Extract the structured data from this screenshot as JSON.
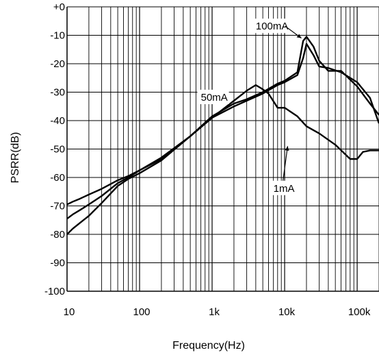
{
  "chart_data": {
    "type": "line",
    "title": "",
    "xlabel": "Frequency(Hz)",
    "ylabel": "PSRR(dB)",
    "x_scale": "log",
    "xlim": [
      10,
      200000
    ],
    "ylim": [
      -100,
      0
    ],
    "x_tick_values": [
      10,
      100,
      1000,
      10000,
      100000
    ],
    "x_tick_labels": [
      "10",
      "100",
      "1k",
      "10k",
      "100k"
    ],
    "y_tick_values": [
      0,
      -10,
      -20,
      -30,
      -40,
      -50,
      -60,
      -70,
      -80,
      -90,
      -100
    ],
    "y_tick_labels": [
      "+0",
      "-10",
      "-20",
      "-30",
      "-40",
      "-50",
      "-60",
      "-70",
      "-80",
      "-90",
      "-100"
    ],
    "grid": true,
    "series": [
      {
        "name": "1mA",
        "color": "#000000",
        "x": [
          10,
          12,
          15,
          20,
          30,
          50,
          70,
          100,
          200,
          500,
          1000,
          2000,
          3000,
          4000,
          5000,
          6000,
          8000,
          10000,
          15000,
          20000,
          30000,
          50000,
          80000,
          100000,
          120000,
          150000,
          200000
        ],
        "y": [
          -69.5,
          -68.5,
          -67.5,
          -66,
          -64,
          -61,
          -59.5,
          -57.5,
          -53.5,
          -45.5,
          -39,
          -33,
          -29.5,
          -27.5,
          -29,
          -30.5,
          -35.5,
          -35.5,
          -38.5,
          -42,
          -44.5,
          -48.5,
          -53.5,
          -53.5,
          -51,
          -50.5,
          -50.5
        ]
      },
      {
        "name": "50mA",
        "color": "#000000",
        "x": [
          10,
          12,
          15,
          20,
          30,
          50,
          70,
          100,
          200,
          500,
          1000,
          2000,
          3000,
          5000,
          8000,
          10000,
          15000,
          18000,
          20000,
          25000,
          30000,
          40000,
          60000,
          100000,
          150000,
          200000
        ],
        "y": [
          -74.5,
          -73,
          -71.5,
          -69.5,
          -66.5,
          -62,
          -60,
          -57.5,
          -53,
          -45.5,
          -39,
          -35,
          -33,
          -30.5,
          -27.5,
          -26.5,
          -24,
          -18,
          -13,
          -17,
          -21,
          -21.5,
          -23,
          -26.5,
          -32,
          -41
        ]
      },
      {
        "name": "100mA",
        "color": "#000000",
        "x": [
          10,
          12,
          15,
          20,
          30,
          50,
          70,
          100,
          200,
          500,
          1000,
          2000,
          3000,
          5000,
          8000,
          10000,
          15000,
          18000,
          20000,
          25000,
          30000,
          40000,
          60000,
          100000,
          150000,
          200000
        ],
        "y": [
          -80,
          -78,
          -76,
          -73.5,
          -69,
          -63,
          -60.5,
          -58.5,
          -54,
          -45.5,
          -38.5,
          -34,
          -32.5,
          -30,
          -27,
          -26,
          -23,
          -12,
          -10.5,
          -14,
          -19,
          -22.5,
          -22.5,
          -28,
          -34,
          -38
        ]
      }
    ],
    "annotations": [
      {
        "text": "100mA",
        "x": 4000,
        "y": -8,
        "arrow_to": [
          17000,
          -11
        ]
      },
      {
        "text": "50mA",
        "x": 700,
        "y": -33,
        "arrow_to": null
      },
      {
        "text": "1mA",
        "x": 7000,
        "y": -65,
        "arrow_to": [
          11000,
          -49
        ]
      }
    ]
  }
}
